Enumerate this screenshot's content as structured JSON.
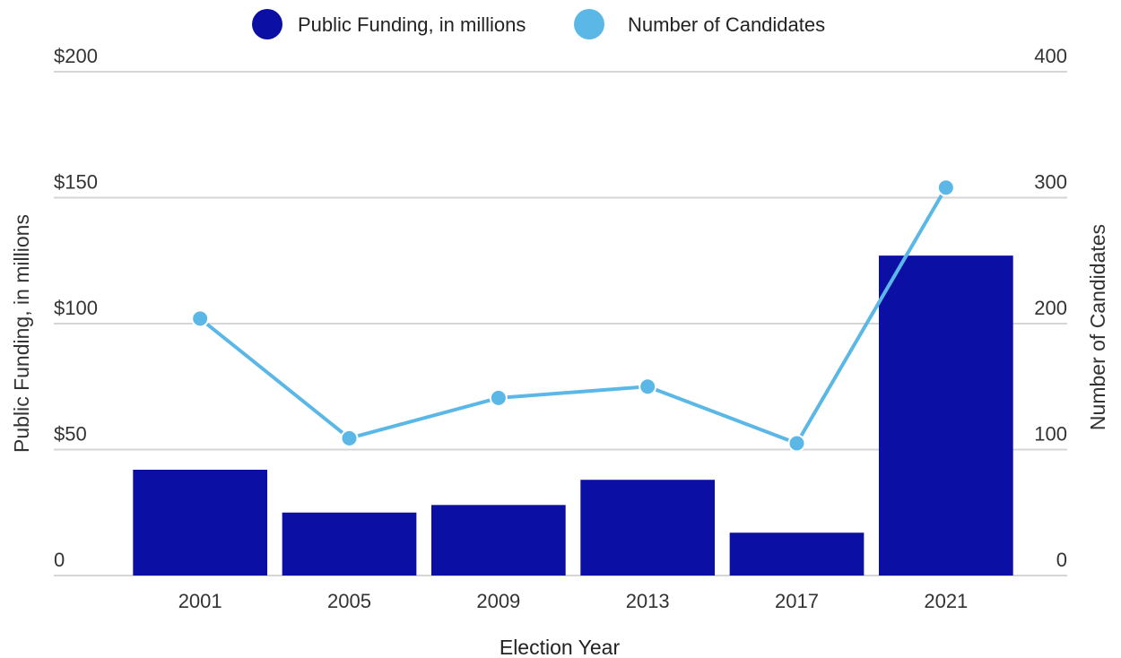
{
  "chart_data": {
    "type": "bar",
    "categories": [
      "2001",
      "2005",
      "2009",
      "2013",
      "2017",
      "2021"
    ],
    "series": [
      {
        "name": "Public Funding, in millions",
        "type": "bar",
        "axis": "left",
        "color": "#0B0FA3",
        "values": [
          42,
          25,
          28,
          38,
          17,
          127
        ]
      },
      {
        "name": "Number of Candidates",
        "type": "line",
        "axis": "right",
        "color": "#5BB8E6",
        "values": [
          204,
          109,
          141,
          150,
          105,
          308
        ]
      }
    ],
    "xlabel": "Election Year",
    "ylabel_left": "Public Funding, in millions",
    "ylabel_right": "Number of Candidates",
    "ylim_left": [
      0,
      200
    ],
    "ylim_right": [
      0,
      400
    ],
    "yticks_left": [
      "0",
      "$50",
      "$100",
      "$150",
      "$200"
    ],
    "yticks_right": [
      "0",
      "100",
      "200",
      "300",
      "400"
    ],
    "grid": true,
    "legend_position": "top-center"
  }
}
